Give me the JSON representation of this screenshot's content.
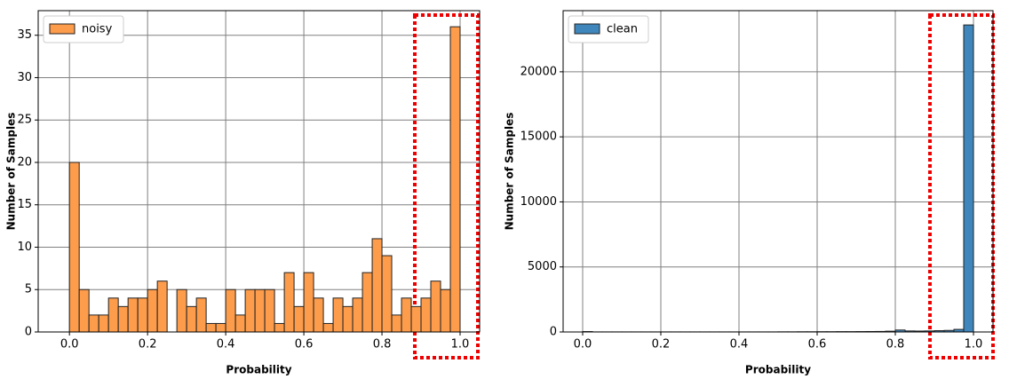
{
  "chart_data": [
    {
      "type": "histogram",
      "xlabel": "Probability",
      "ylabel": "Number of Samples",
      "bins": [
        0,
        0.025,
        0.05,
        0.075,
        0.1,
        0.125,
        0.15,
        0.175,
        0.2,
        0.225,
        0.25,
        0.275,
        0.3,
        0.325,
        0.35,
        0.375,
        0.4,
        0.425,
        0.45,
        0.475,
        0.5,
        0.525,
        0.55,
        0.575,
        0.6,
        0.625,
        0.65,
        0.675,
        0.7,
        0.725,
        0.75,
        0.775,
        0.8,
        0.825,
        0.85,
        0.875,
        0.9,
        0.925,
        0.95,
        0.975,
        1
      ],
      "series": [
        {
          "name": "noisy",
          "color": "#fd9c4b",
          "values": [
            20,
            5,
            2,
            2,
            4,
            3,
            4,
            4,
            5,
            6,
            0,
            5,
            3,
            4,
            1,
            1,
            5,
            2,
            5,
            5,
            5,
            1,
            7,
            3,
            7,
            4,
            1,
            4,
            3,
            4,
            7,
            11,
            9,
            2,
            4,
            3,
            4,
            6,
            5,
            36
          ]
        }
      ],
      "xlim": [
        -0.08,
        1.05
      ],
      "ylim": [
        0,
        37.9
      ],
      "xticks": [
        {
          "value": 0,
          "label": "0.0"
        },
        0.2,
        0.4,
        0.6,
        0.8,
        {
          "value": 1,
          "label": "1.0"
        }
      ],
      "yticks": [
        0,
        5,
        10,
        15,
        20,
        25,
        30,
        35
      ],
      "grid": true,
      "legend": "upper left"
    },
    {
      "type": "histogram",
      "xlabel": "Probability",
      "ylabel": "Number of Samples",
      "bins": [
        0,
        0.025,
        0.05,
        0.075,
        0.1,
        0.125,
        0.15,
        0.175,
        0.2,
        0.225,
        0.25,
        0.275,
        0.3,
        0.325,
        0.35,
        0.375,
        0.4,
        0.425,
        0.45,
        0.475,
        0.5,
        0.525,
        0.55,
        0.575,
        0.6,
        0.625,
        0.65,
        0.675,
        0.7,
        0.725,
        0.75,
        0.775,
        0.8,
        0.825,
        0.85,
        0.875,
        0.9,
        0.925,
        0.95,
        0.975,
        1
      ],
      "series": [
        {
          "name": "clean",
          "color": "#3f86bc",
          "values": [
            30,
            5,
            5,
            5,
            5,
            5,
            5,
            5,
            5,
            5,
            5,
            5,
            5,
            5,
            5,
            5,
            5,
            5,
            5,
            5,
            10,
            10,
            15,
            15,
            20,
            20,
            25,
            25,
            30,
            35,
            40,
            60,
            150,
            80,
            70,
            80,
            100,
            120,
            200,
            23600
          ]
        }
      ],
      "xlim": [
        -0.05,
        1.05
      ],
      "ylim": [
        0,
        24700
      ],
      "xticks": [
        {
          "value": 0,
          "label": "0.0"
        },
        0.2,
        0.4,
        0.6,
        0.8,
        {
          "value": 1,
          "label": "1.0"
        }
      ],
      "yticks": [
        0,
        5000,
        10000,
        15000,
        20000
      ],
      "grid": true,
      "legend": "upper left"
    }
  ]
}
